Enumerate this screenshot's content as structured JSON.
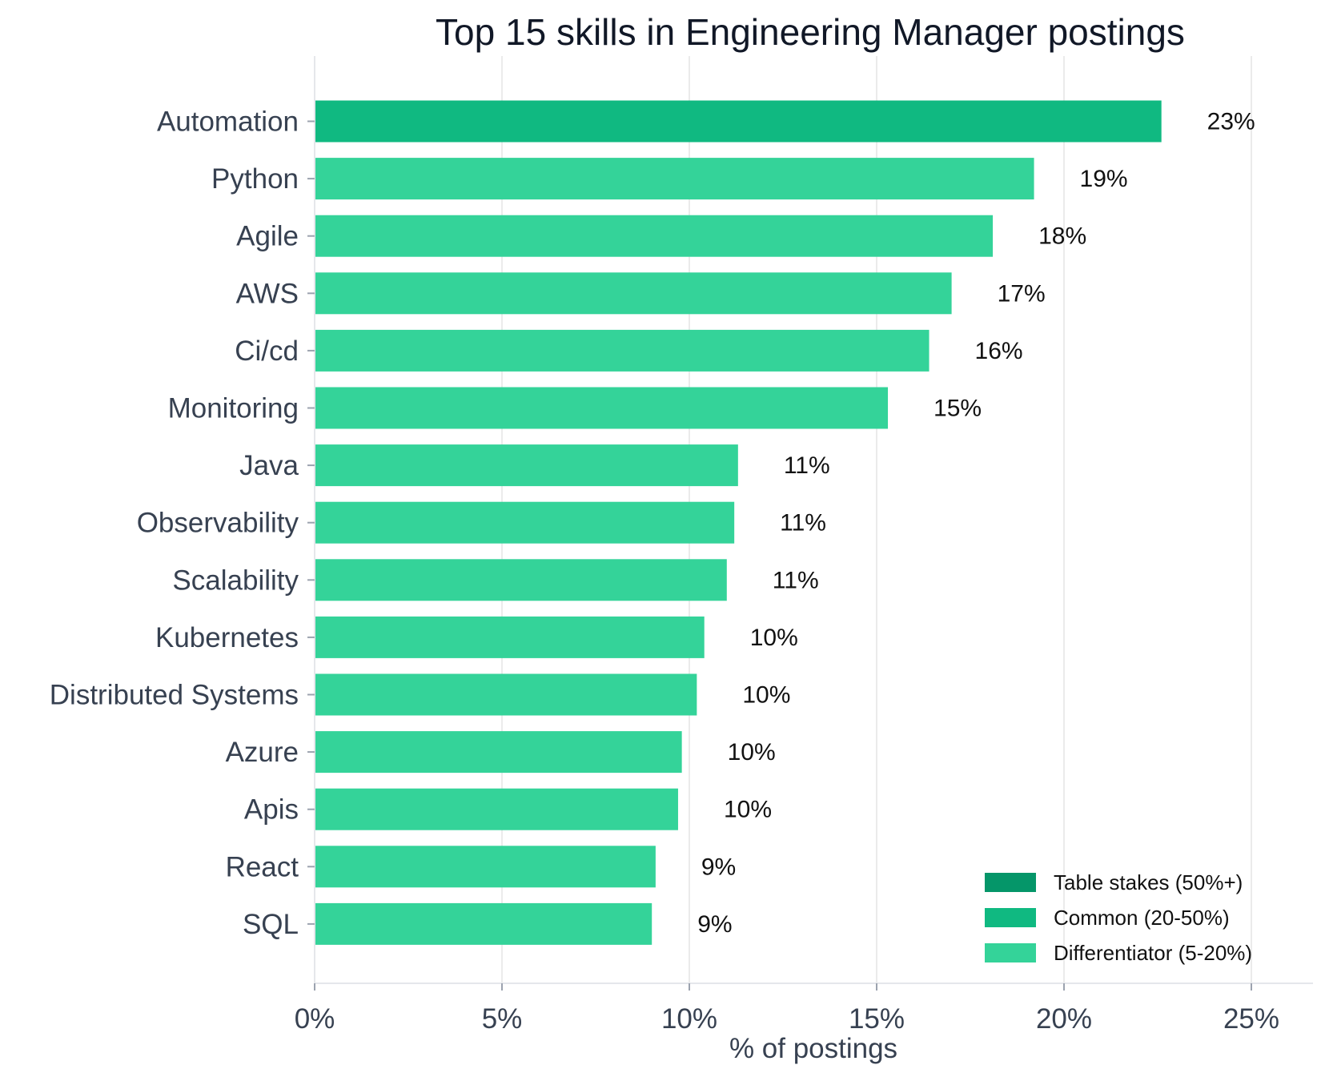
{
  "chart_data": {
    "type": "bar",
    "orientation": "horizontal",
    "title": "Top 15 skills in Engineering Manager postings",
    "xlabel": "% of postings",
    "ylabel": "",
    "xlim": [
      0,
      26.5
    ],
    "x_ticks": [
      0,
      5,
      10,
      15,
      20,
      25
    ],
    "x_tick_labels": [
      "0%",
      "5%",
      "10%",
      "15%",
      "20%",
      "25%"
    ],
    "grid": "vertical",
    "categories": [
      "Automation",
      "Python",
      "Agile",
      "AWS",
      "Ci/cd",
      "Monitoring",
      "Java",
      "Observability",
      "Scalability",
      "Kubernetes",
      "Distributed Systems",
      "Azure",
      "Apis",
      "React",
      "SQL"
    ],
    "values": [
      22.6,
      19.2,
      18.1,
      17.0,
      16.4,
      15.3,
      11.3,
      11.2,
      11.0,
      10.4,
      10.2,
      9.8,
      9.7,
      9.1,
      9.0
    ],
    "data_labels": [
      "23%",
      "19%",
      "18%",
      "17%",
      "16%",
      "15%",
      "11%",
      "11%",
      "11%",
      "10%",
      "10%",
      "10%",
      "10%",
      "9%",
      "9%"
    ],
    "tiers": [
      "common",
      "differentiator",
      "differentiator",
      "differentiator",
      "differentiator",
      "differentiator",
      "differentiator",
      "differentiator",
      "differentiator",
      "differentiator",
      "differentiator",
      "differentiator",
      "differentiator",
      "differentiator",
      "differentiator"
    ],
    "legend": {
      "placement": "bottom-right",
      "entries": [
        {
          "key": "table_stakes",
          "label": "Table stakes (50%+)",
          "color": "#059669"
        },
        {
          "key": "common",
          "label": "Common (20-50%)",
          "color": "#10b981"
        },
        {
          "key": "differentiator",
          "label": "Differentiator (5-20%)",
          "color": "#34d399"
        }
      ]
    }
  }
}
